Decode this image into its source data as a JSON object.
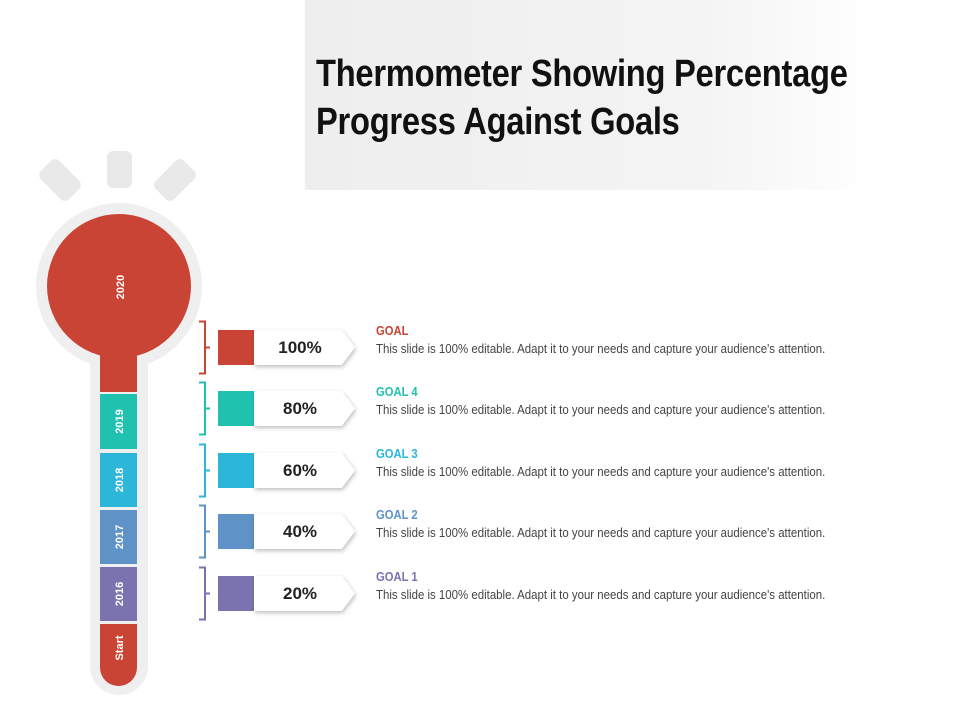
{
  "title": "Thermometer Showing Percentage Progress Against Goals",
  "thermometer": {
    "bulb_label": "2020",
    "bulb_color": "#c94434",
    "segments": [
      {
        "label": "2019",
        "color": "#21c1b0"
      },
      {
        "label": "2018",
        "color": "#2bb6da"
      },
      {
        "label": "2017",
        "color": "#5f92c7"
      },
      {
        "label": "2016",
        "color": "#7a73b0"
      },
      {
        "label": "Start",
        "color": "#c94434"
      }
    ]
  },
  "goals": [
    {
      "percent": "100%",
      "title": "GOAL",
      "description": "This slide is 100% editable. Adapt it to your needs and capture your audience's attention.",
      "color": "#c94434"
    },
    {
      "percent": "80%",
      "title": "GOAL 4",
      "description": "This slide is 100% editable. Adapt it to your needs and capture your audience's attention.",
      "color": "#21c1b0"
    },
    {
      "percent": "60%",
      "title": "GOAL 3",
      "description": "This slide is 100% editable. Adapt it to your needs and capture your audience's attention.",
      "color": "#2bb6da"
    },
    {
      "percent": "40%",
      "title": "GOAL 2",
      "description": "This slide is 100% editable. Adapt it to your needs and capture your audience's attention.",
      "color": "#5f92c7"
    },
    {
      "percent": "20%",
      "title": "GOAL 1",
      "description": "This slide is 100% editable. Adapt it to your needs and capture your audience's attention.",
      "color": "#7a73b0"
    }
  ]
}
